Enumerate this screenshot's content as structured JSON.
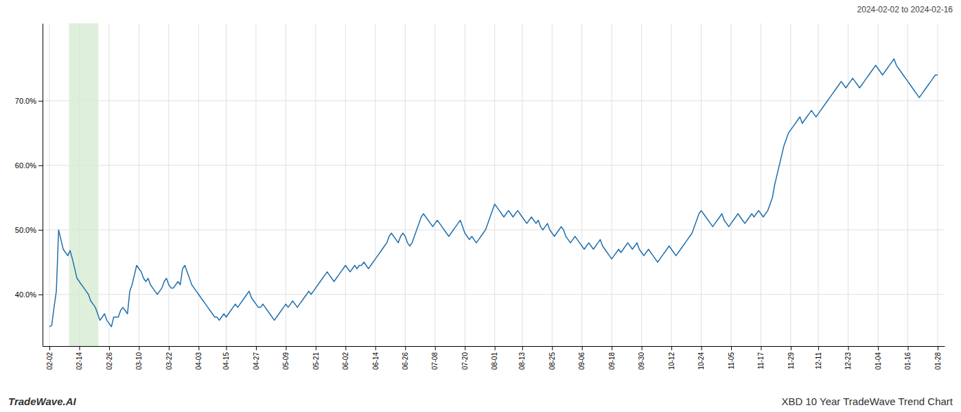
{
  "chart_data": {
    "type": "line",
    "title": "XBD 10 Year TradeWave Trend Chart",
    "annotations": [
      "2024-02-02 to 2024-02-16",
      "TradeWave.AI"
    ],
    "color": "#1f6fad",
    "grid": true,
    "ylim": [
      32,
      82
    ],
    "yticks": [
      {
        "value": 40.0,
        "label": "40.0%"
      },
      {
        "value": 50.0,
        "label": "50.0%"
      },
      {
        "value": 60.0,
        "label": "60.0%"
      },
      {
        "value": 70.0,
        "label": "70.0%"
      }
    ],
    "highlight": {
      "x": [
        8.536,
        21.34
      ],
      "color": "#d6ecd2"
    },
    "categories": [
      "02-02",
      null,
      null,
      null,
      null,
      null,
      null,
      null,
      null,
      null,
      null,
      null,
      null,
      "02-14",
      null,
      null,
      null,
      null,
      null,
      null,
      null,
      null,
      null,
      null,
      null,
      null,
      "02-26",
      null,
      null,
      null,
      null,
      null,
      null,
      null,
      null,
      null,
      null,
      null,
      null,
      "03-10",
      null,
      null,
      null,
      null,
      null,
      null,
      null,
      null,
      null,
      null,
      null,
      null,
      "03-22",
      null,
      null,
      null,
      null,
      null,
      null,
      null,
      null,
      null,
      null,
      null,
      null,
      "04-03",
      null,
      null,
      null,
      null,
      null,
      null,
      null,
      null,
      null,
      null,
      null,
      "04-15",
      null,
      null,
      null,
      null,
      null,
      null,
      null,
      null,
      null,
      null,
      null,
      null,
      "04-27",
      null,
      null,
      null,
      null,
      null,
      null,
      null,
      null,
      null,
      null,
      null,
      null,
      "05-09",
      null,
      null,
      null,
      null,
      null,
      null,
      null,
      null,
      null,
      null,
      null,
      null,
      "05-21",
      null,
      null,
      null,
      null,
      null,
      null,
      null,
      null,
      null,
      null,
      null,
      null,
      "06-02",
      null,
      null,
      null,
      null,
      null,
      null,
      null,
      null,
      null,
      null,
      null,
      null,
      "06-14",
      null,
      null,
      null,
      null,
      null,
      null,
      null,
      null,
      null,
      null,
      null,
      null,
      "06-26",
      null,
      null,
      null,
      null,
      null,
      null,
      null,
      null,
      null,
      null,
      null,
      null,
      "07-08",
      null,
      null,
      null,
      null,
      null,
      null,
      null,
      null,
      null,
      null,
      null,
      null,
      "07-20",
      null,
      null,
      null,
      null,
      null,
      null,
      null,
      null,
      null,
      null,
      null,
      null,
      "08-01",
      null,
      null,
      null,
      null,
      null,
      null,
      null,
      null,
      null,
      null,
      null,
      "08-13",
      null,
      null,
      null,
      null,
      null,
      null,
      null,
      null,
      null,
      null,
      null,
      null,
      "08-25",
      null,
      null,
      null,
      null,
      null,
      null,
      null,
      null,
      null,
      null,
      null,
      null,
      "09-06",
      null,
      null,
      null,
      null,
      null,
      null,
      null,
      null,
      null,
      null,
      null,
      null,
      "09-18",
      null,
      null,
      null,
      null,
      null,
      null,
      null,
      null,
      null,
      null,
      null,
      null,
      "09-30",
      null,
      null,
      null,
      null,
      null,
      null,
      null,
      null,
      null,
      null,
      null,
      null,
      "10-12",
      null,
      null,
      null,
      null,
      null,
      null,
      null,
      null,
      null,
      null,
      null,
      null,
      "10-24",
      null,
      null,
      null,
      null,
      null,
      null,
      null,
      null,
      null,
      null,
      null,
      null,
      "11-05",
      null,
      null,
      null,
      null,
      null,
      null,
      null,
      null,
      null,
      null,
      null,
      null,
      "11-17",
      null,
      null,
      null,
      null,
      null,
      null,
      null,
      null,
      null,
      null,
      null,
      null,
      "11-29",
      null,
      null,
      null,
      null,
      null,
      null,
      null,
      null,
      null,
      null,
      null,
      "12-11",
      null,
      null,
      null,
      null,
      null,
      null,
      null,
      null,
      null,
      null,
      null,
      null,
      "12-23",
      null,
      null,
      null,
      null,
      null,
      null,
      null,
      null,
      null,
      null,
      null,
      null,
      "01-04",
      null,
      null,
      null,
      null,
      null,
      null,
      null,
      null,
      null,
      null,
      null,
      null,
      "01-16",
      null,
      null,
      null,
      null,
      null,
      null,
      null,
      null,
      null,
      null,
      null,
      null,
      "01-28"
    ],
    "values": [
      35.0,
      35.2,
      38.0,
      40.5,
      50.0,
      48.5,
      47.0,
      46.5,
      46.0,
      46.8,
      45.5,
      44.0,
      42.5,
      42.0,
      41.5,
      41.0,
      40.5,
      40.0,
      39.0,
      38.5,
      38.0,
      37.0,
      36.0,
      36.5,
      37.0,
      36.0,
      35.5,
      35.0,
      36.5,
      36.5,
      36.5,
      37.5,
      38.0,
      37.5,
      37.0,
      40.5,
      41.5,
      43.0,
      44.5,
      44.0,
      43.5,
      42.5,
      42.0,
      42.5,
      41.5,
      41.0,
      40.5,
      40.0,
      40.5,
      41.0,
      42.0,
      42.5,
      41.5,
      41.0,
      41.0,
      41.5,
      42.0,
      41.5,
      44.0,
      44.5,
      43.5,
      42.5,
      41.5,
      41.0,
      40.5,
      40.0,
      39.5,
      39.0,
      38.5,
      38.0,
      37.5,
      37.0,
      36.5,
      36.5,
      36.0,
      36.5,
      37.0,
      36.5,
      37.0,
      37.5,
      38.0,
      38.5,
      38.0,
      38.5,
      39.0,
      39.5,
      40.0,
      40.5,
      39.5,
      39.0,
      38.5,
      38.0,
      38.0,
      38.5,
      38.0,
      37.5,
      37.0,
      36.5,
      36.0,
      36.5,
      37.0,
      37.5,
      38.0,
      38.5,
      38.0,
      38.5,
      39.0,
      38.5,
      38.0,
      38.5,
      39.0,
      39.5,
      40.0,
      40.5,
      40.0,
      40.5,
      41.0,
      41.5,
      42.0,
      42.5,
      43.0,
      43.5,
      43.0,
      42.5,
      42.0,
      42.5,
      43.0,
      43.5,
      44.0,
      44.5,
      44.0,
      43.5,
      44.0,
      44.5,
      44.0,
      44.5,
      44.5,
      45.0,
      44.5,
      44.0,
      44.5,
      45.0,
      45.5,
      46.0,
      46.5,
      47.0,
      47.5,
      48.0,
      49.0,
      49.5,
      49.0,
      48.5,
      48.0,
      49.0,
      49.5,
      49.0,
      48.0,
      47.5,
      48.0,
      49.0,
      50.0,
      51.0,
      52.0,
      52.5,
      52.0,
      51.5,
      51.0,
      50.5,
      51.0,
      51.5,
      51.0,
      50.5,
      50.0,
      49.5,
      49.0,
      49.5,
      50.0,
      50.5,
      51.0,
      51.5,
      50.5,
      49.5,
      49.0,
      48.5,
      49.0,
      48.5,
      48.0,
      48.5,
      49.0,
      49.5,
      50.0,
      51.0,
      52.0,
      53.0,
      54.0,
      53.5,
      53.0,
      52.5,
      52.0,
      52.5,
      53.0,
      52.5,
      52.0,
      52.5,
      53.0,
      52.5,
      52.0,
      51.5,
      51.0,
      51.5,
      52.0,
      51.5,
      51.0,
      51.5,
      50.5,
      50.0,
      50.5,
      51.0,
      50.0,
      49.5,
      49.0,
      49.5,
      50.0,
      50.5,
      50.0,
      49.0,
      48.5,
      48.0,
      48.5,
      49.0,
      48.5,
      48.0,
      47.5,
      47.0,
      47.5,
      48.0,
      47.5,
      47.0,
      47.5,
      48.0,
      48.5,
      47.5,
      47.0,
      46.5,
      46.0,
      45.5,
      46.0,
      46.5,
      47.0,
      46.5,
      47.0,
      47.5,
      48.0,
      47.5,
      47.0,
      47.5,
      48.0,
      47.0,
      46.5,
      46.0,
      46.5,
      47.0,
      46.5,
      46.0,
      45.5,
      45.0,
      45.5,
      46.0,
      46.5,
      47.0,
      47.5,
      47.0,
      46.5,
      46.0,
      46.5,
      47.0,
      47.5,
      48.0,
      48.5,
      49.0,
      49.5,
      50.5,
      51.5,
      52.5,
      53.0,
      52.5,
      52.0,
      51.5,
      51.0,
      50.5,
      51.0,
      51.5,
      52.0,
      52.5,
      51.5,
      51.0,
      50.5,
      51.0,
      51.5,
      52.0,
      52.5,
      52.0,
      51.5,
      51.0,
      51.5,
      52.0,
      52.5,
      52.0,
      52.5,
      53.0,
      52.5,
      52.0,
      52.5,
      53.0,
      54.0,
      55.0,
      57.0,
      58.5,
      60.0,
      61.5,
      63.0,
      64.0,
      65.0,
      65.5,
      66.0,
      66.5,
      67.0,
      67.5,
      66.5,
      67.0,
      67.5,
      68.0,
      68.5,
      68.0,
      67.5,
      68.0,
      68.5,
      69.0,
      69.5,
      70.0,
      70.5,
      71.0,
      71.5,
      72.0,
      72.5,
      73.0,
      72.5,
      72.0,
      72.5,
      73.0,
      73.5,
      73.0,
      72.5,
      72.0,
      72.5,
      73.0,
      73.5,
      74.0,
      74.5,
      75.0,
      75.5,
      75.0,
      74.5,
      74.0,
      74.5,
      75.0,
      75.5,
      76.0,
      76.5,
      75.5,
      75.0,
      74.5,
      74.0,
      73.5,
      73.0,
      72.5,
      72.0,
      71.5,
      71.0,
      70.5,
      71.0,
      71.5,
      72.0,
      72.5,
      73.0,
      73.5,
      74.0,
      74.0
    ]
  }
}
